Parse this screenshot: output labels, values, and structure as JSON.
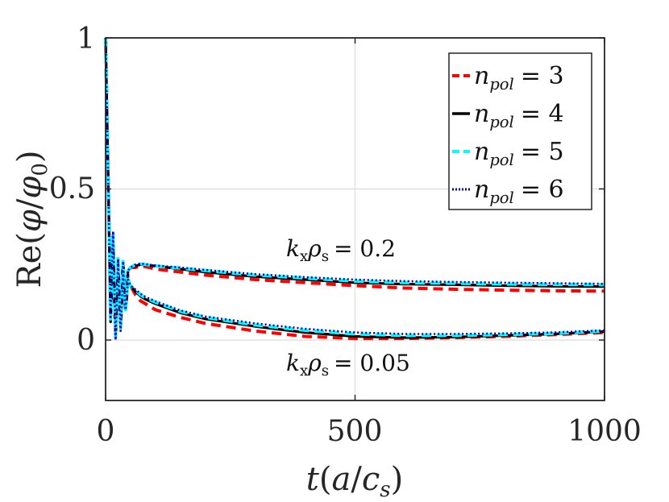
{
  "chart_data": {
    "type": "line",
    "xlabel": "t(a/c_s)",
    "ylabel": "Re(φ/φ_0)",
    "xlim": [
      0,
      1000
    ],
    "ylim": [
      -0.2,
      1.0
    ],
    "xticks": [
      "0",
      "500",
      "1000"
    ],
    "yticks": [
      "0",
      "0.5",
      "1"
    ],
    "grid": true,
    "legend_position": "top-right",
    "legend": [
      {
        "var": "n",
        "sub": "pol",
        "eq": "= 3"
      },
      {
        "var": "n",
        "sub": "pol",
        "eq": "= 4"
      },
      {
        "var": "n",
        "sub": "pol",
        "eq": "= 5"
      },
      {
        "var": "n",
        "sub": "pol",
        "eq": "= 6"
      }
    ],
    "annotations": {
      "upper": {
        "a": "k",
        "asub": "x",
        "b": "ρ",
        "bsub": "s",
        "eq": "= 0.2"
      },
      "lower": {
        "a": "k",
        "asub": "x",
        "b": "ρ",
        "bsub": "s",
        "eq": "= 0.05"
      }
    },
    "series": [
      {
        "name": "n_pol = 3 (kxρs=0.2)",
        "color": "#ff0000",
        "style": "dashed",
        "x": [
          0,
          5,
          10,
          15,
          20,
          25,
          30,
          35,
          40,
          45,
          50,
          60,
          70,
          80,
          100,
          150,
          200,
          300,
          400,
          500,
          600,
          700,
          800,
          900,
          1000
        ],
        "y": [
          1.0,
          0.55,
          0.12,
          0.3,
          0.06,
          0.24,
          0.1,
          0.25,
          0.14,
          0.22,
          0.24,
          0.24,
          0.245,
          0.243,
          0.235,
          0.225,
          0.215,
          0.2,
          0.19,
          0.18,
          0.172,
          0.168,
          0.165,
          0.163,
          0.162
        ]
      },
      {
        "name": "n_pol = 4 (kxρs=0.2)",
        "color": "#000000",
        "style": "solid",
        "x": [
          0,
          5,
          10,
          15,
          20,
          25,
          30,
          35,
          40,
          45,
          50,
          60,
          70,
          80,
          100,
          150,
          200,
          300,
          400,
          500,
          600,
          700,
          800,
          900,
          1000
        ],
        "y": [
          1.0,
          0.55,
          0.1,
          0.33,
          0.05,
          0.26,
          0.09,
          0.26,
          0.13,
          0.23,
          0.24,
          0.245,
          0.25,
          0.248,
          0.245,
          0.235,
          0.225,
          0.21,
          0.2,
          0.19,
          0.185,
          0.183,
          0.18,
          0.178,
          0.177
        ]
      },
      {
        "name": "n_pol = 5 (kxρs=0.2)",
        "color": "#00ffff",
        "style": "dashed",
        "x": [
          0,
          5,
          10,
          15,
          20,
          25,
          30,
          35,
          40,
          45,
          50,
          60,
          70,
          80,
          100,
          150,
          200,
          300,
          400,
          500,
          600,
          700,
          800,
          900,
          1000
        ],
        "y": [
          1.0,
          0.55,
          0.11,
          0.35,
          0.05,
          0.27,
          0.09,
          0.26,
          0.13,
          0.23,
          0.24,
          0.25,
          0.252,
          0.25,
          0.245,
          0.238,
          0.23,
          0.215,
          0.205,
          0.195,
          0.19,
          0.188,
          0.185,
          0.184,
          0.183
        ]
      },
      {
        "name": "n_pol = 6 (kxρs=0.2)",
        "color": "#0000cd",
        "style": "dotted",
        "x": [
          0,
          5,
          10,
          15,
          20,
          25,
          30,
          35,
          40,
          45,
          50,
          60,
          70,
          80,
          100,
          150,
          200,
          300,
          400,
          500,
          600,
          700,
          800,
          900,
          1000
        ],
        "y": [
          1.0,
          0.55,
          0.11,
          0.36,
          0.04,
          0.27,
          0.08,
          0.26,
          0.13,
          0.23,
          0.24,
          0.25,
          0.253,
          0.251,
          0.247,
          0.24,
          0.232,
          0.218,
          0.208,
          0.2,
          0.195,
          0.192,
          0.19,
          0.188,
          0.186
        ]
      },
      {
        "name": "n_pol = 3 (kxρs=0.05)",
        "color": "#ff0000",
        "style": "dashed",
        "x": [
          0,
          5,
          10,
          15,
          20,
          25,
          30,
          35,
          40,
          45,
          50,
          60,
          70,
          80,
          100,
          150,
          200,
          300,
          400,
          500,
          600,
          700,
          800,
          900,
          1000
        ],
        "y": [
          1.0,
          0.55,
          0.08,
          0.28,
          0.02,
          0.22,
          0.05,
          0.2,
          0.1,
          0.2,
          0.18,
          0.15,
          0.13,
          0.12,
          0.1,
          0.075,
          0.055,
          0.03,
          0.012,
          0.005,
          0.005,
          0.008,
          0.012,
          0.018,
          0.025
        ]
      },
      {
        "name": "n_pol = 4 (kxρs=0.05)",
        "color": "#000000",
        "style": "solid",
        "x": [
          0,
          5,
          10,
          15,
          20,
          25,
          30,
          35,
          40,
          45,
          50,
          60,
          70,
          80,
          100,
          150,
          200,
          300,
          400,
          500,
          600,
          700,
          800,
          900,
          1000
        ],
        "y": [
          1.0,
          0.55,
          0.06,
          0.32,
          0.01,
          0.24,
          0.04,
          0.21,
          0.1,
          0.2,
          0.18,
          0.16,
          0.145,
          0.135,
          0.12,
          0.09,
          0.07,
          0.045,
          0.025,
          0.012,
          0.008,
          0.01,
          0.015,
          0.02,
          0.028
        ]
      },
      {
        "name": "n_pol = 5 (kxρs=0.05)",
        "color": "#00ffff",
        "style": "dashed",
        "x": [
          0,
          5,
          10,
          15,
          20,
          25,
          30,
          35,
          40,
          45,
          50,
          60,
          70,
          80,
          100,
          150,
          200,
          300,
          400,
          500,
          600,
          700,
          800,
          900,
          1000
        ],
        "y": [
          1.0,
          0.55,
          0.07,
          0.34,
          0.01,
          0.25,
          0.04,
          0.22,
          0.1,
          0.2,
          0.18,
          0.165,
          0.15,
          0.14,
          0.125,
          0.095,
          0.075,
          0.05,
          0.032,
          0.02,
          0.015,
          0.015,
          0.018,
          0.022,
          0.03
        ]
      },
      {
        "name": "n_pol = 6 (kxρs=0.05)",
        "color": "#0000cd",
        "style": "dotted",
        "x": [
          0,
          5,
          10,
          15,
          20,
          25,
          30,
          35,
          40,
          45,
          50,
          60,
          70,
          80,
          100,
          150,
          200,
          300,
          400,
          500,
          600,
          700,
          800,
          900,
          1000
        ],
        "y": [
          1.0,
          0.55,
          0.07,
          0.36,
          0.0,
          0.26,
          0.03,
          0.22,
          0.1,
          0.2,
          0.18,
          0.167,
          0.153,
          0.143,
          0.128,
          0.098,
          0.078,
          0.055,
          0.037,
          0.025,
          0.02,
          0.02,
          0.022,
          0.025,
          0.032
        ]
      }
    ]
  }
}
